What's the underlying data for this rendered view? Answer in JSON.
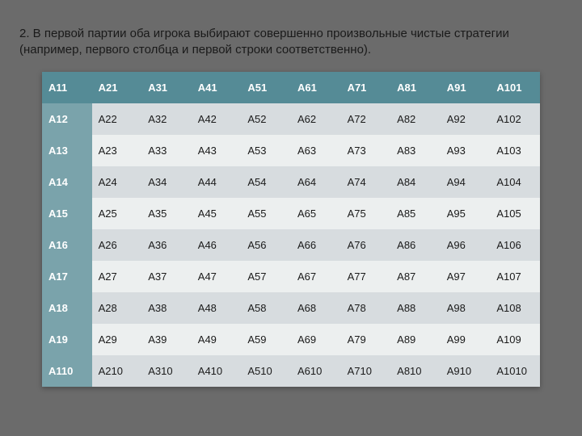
{
  "intro": "2. В первой партии оба игрока выбирают совершенно произвольные чистые стратегии (например, первого столбца и первой строки соответственно).",
  "table": {
    "colors": {
      "head_bg": "#558b96",
      "rowhead_bg": "#7aa3ab",
      "row_even_bg": "#d7dcdf",
      "row_odd_bg": "#ecefef",
      "text": "#1a1a1a",
      "head_text": "#ffffff"
    },
    "rows": [
      [
        "А11",
        "А21",
        "А31",
        "А41",
        "А51",
        "А61",
        "А71",
        "А81",
        "А91",
        "А101"
      ],
      [
        "А12",
        "А22",
        "А32",
        "А42",
        "А52",
        "А62",
        "А72",
        "А82",
        "А92",
        "А102"
      ],
      [
        "А13",
        "А23",
        "А33",
        "А43",
        "А53",
        "А63",
        "А73",
        "А83",
        "А93",
        "А103"
      ],
      [
        "А14",
        "А24",
        "А34",
        "А44",
        "А54",
        "А64",
        "А74",
        "А84",
        "А94",
        "А104"
      ],
      [
        "А15",
        "А25",
        "А35",
        "А45",
        "А55",
        "А65",
        "А75",
        "А85",
        "А95",
        "А105"
      ],
      [
        "А16",
        "А26",
        "А36",
        "А46",
        "А56",
        "А66",
        "А76",
        "А86",
        "А96",
        "А106"
      ],
      [
        "А17",
        "А27",
        "А37",
        "А47",
        "А57",
        "А67",
        "А77",
        "А87",
        "А97",
        "А107"
      ],
      [
        "А18",
        "А28",
        "А38",
        "А48",
        "А58",
        "А68",
        "А78",
        "А88",
        "А98",
        "А108"
      ],
      [
        "А19",
        "А29",
        "А39",
        "А49",
        "А59",
        "А69",
        "А79",
        "А89",
        "А99",
        "А109"
      ],
      [
        "А110",
        "А210",
        "А310",
        "А410",
        "А510",
        "А610",
        "А710",
        "А810",
        "А910",
        "А1010"
      ]
    ]
  }
}
